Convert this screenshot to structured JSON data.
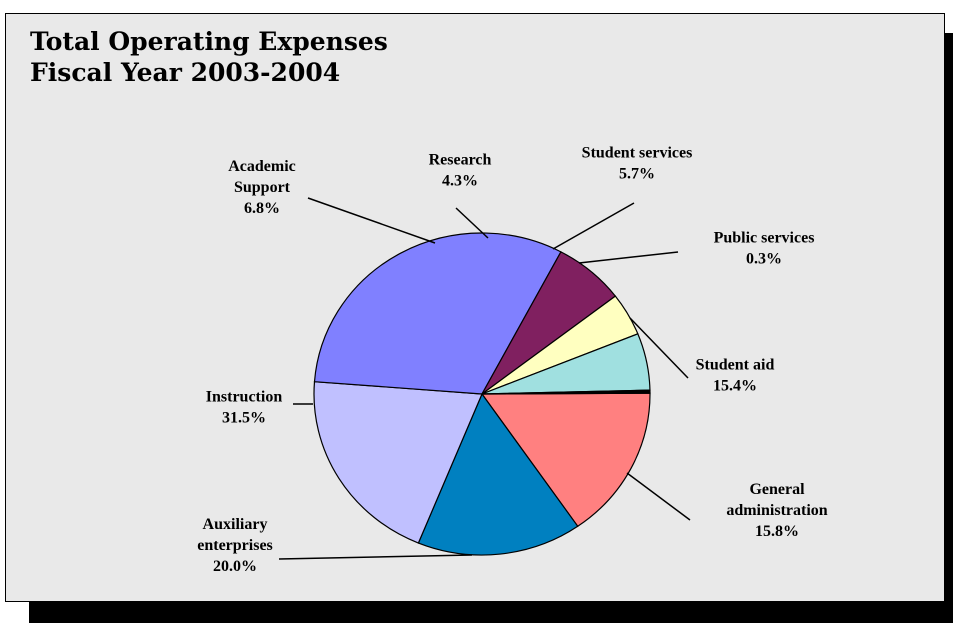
{
  "chart_data": {
    "type": "pie",
    "title_lines": [
      "Total Operating Expenses",
      "Fiscal Year 2003-2004"
    ],
    "slices": [
      {
        "label_lines": [
          "Student aid"
        ],
        "value_label": "15.4%",
        "value": 15.4,
        "color": "#ff8080"
      },
      {
        "label_lines": [
          "General",
          "administration"
        ],
        "value_label": "15.8%",
        "value": 15.8,
        "color": "#0080c0"
      },
      {
        "label_lines": [
          "Auxiliary",
          "enterprises"
        ],
        "value_label": "20.0%",
        "value": 20.0,
        "color": "#c0c0ff"
      },
      {
        "label_lines": [
          "Instruction"
        ],
        "value_label": "31.5%",
        "value": 31.5,
        "color": "#8080ff"
      },
      {
        "label_lines": [
          "Academic",
          "Support"
        ],
        "value_label": "6.8%",
        "value": 6.8,
        "color": "#802060"
      },
      {
        "label_lines": [
          "Research"
        ],
        "value_label": "4.3%",
        "value": 4.3,
        "color": "#ffffc0"
      },
      {
        "label_lines": [
          "Student services"
        ],
        "value_label": "5.7%",
        "value": 5.7,
        "color": "#a0e0e0"
      },
      {
        "label_lines": [
          "Public services"
        ],
        "value_label": "0.3%",
        "value": 0.3,
        "color": "#000000"
      }
    ]
  }
}
